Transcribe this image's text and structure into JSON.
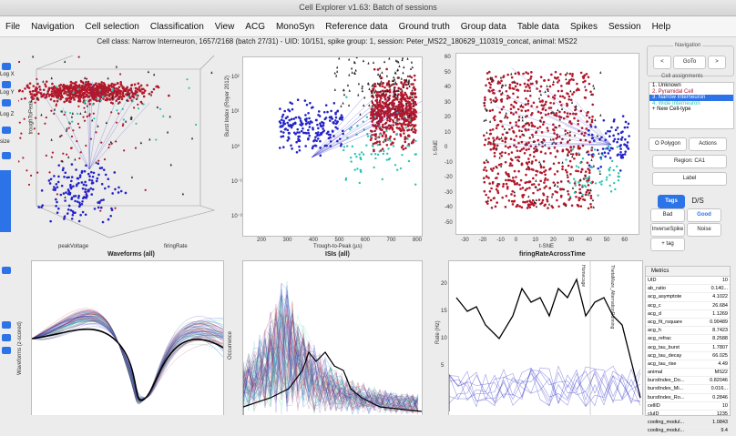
{
  "window": {
    "title": "Cell Explorer v1.63: Batch of sessions"
  },
  "menu": [
    "File",
    "Navigation",
    "Cell selection",
    "Classification",
    "View",
    "ACG",
    "MonoSyn",
    "Reference data",
    "Ground truth",
    "Group data",
    "Table data",
    "Spikes",
    "Session",
    "Help"
  ],
  "info_line": "Cell class: Narrow Interneuron, 1657/2168 (batch 27/31) - UID: 10/151, spike group: 1, session: Peter_MS22_180629_110319_concat, animal: MS22",
  "left_labels": [
    "Log X",
    "Log Y",
    "Log Z",
    "size"
  ],
  "plots": {
    "p1": {
      "xlabel": "peakVoltage",
      "ylabel": "troughToPeak",
      "zlabel": "firingRate",
      "title": "Waveforms (all)",
      "ticks": [
        "0.7",
        "0.6",
        "0.5",
        "0.4",
        "0.3",
        "0.2",
        "0.1",
        "10³",
        "10²",
        "10⁰",
        "10¹"
      ]
    },
    "p2": {
      "xlabel": "Trough-to-Peak (µs)",
      "ylabel": "Burst Index (Royer 2012)",
      "title": "ISIs (all)",
      "xticks": [
        "200",
        "300",
        "400",
        "500",
        "600",
        "700",
        "800"
      ],
      "yticks": [
        "10²",
        "10¹",
        "10⁰",
        "10⁻¹",
        "10⁻²"
      ]
    },
    "p3": {
      "xlabel": "t-SNE",
      "ylabel": "t-SNE",
      "title": "firingRateAcrossTime",
      "xticks": [
        "-30",
        "-20",
        "-10",
        "0",
        "10",
        "20",
        "30",
        "40",
        "50",
        "60"
      ],
      "yticks": [
        "60",
        "50",
        "40",
        "30",
        "20",
        "10",
        "0",
        "-10",
        "-20",
        "-30",
        "-40",
        "-50"
      ]
    },
    "p4": {
      "ylabel": "Waveforms (z-scored)"
    },
    "p5": {
      "ylabel": "Occurrence"
    },
    "p6": {
      "ylabel": "Rate (Hz)",
      "yticks": [
        "20",
        "15",
        "10",
        "5"
      ],
      "annotations": [
        "Homecage",
        "ThetaMaze_AlternationRunning"
      ]
    }
  },
  "right": {
    "navigation": {
      "caption": "Navigation",
      "prev": "<",
      "goto": "GoTo",
      "next": ">"
    },
    "cell_assignments": {
      "caption": "Cell assignments",
      "items": [
        "1. Unknown",
        "2. Pyramidal Cell",
        "3. Narrow Interneuron",
        "4. Wide Interneuron",
        "+  New Cell-type"
      ]
    },
    "polygon": "O Polygon",
    "actions": "Actions",
    "region": "Region: CA1",
    "label": "Label",
    "tags": "Tags",
    "ds": "D/S",
    "tag_buttons": [
      "Bad",
      "Good",
      "InverseSpike",
      "Noise",
      "+ tag"
    ],
    "metrics_header": "Metrics",
    "metrics": [
      [
        "UID",
        "10"
      ],
      [
        "ab_ratio",
        "0.140..."
      ],
      [
        "acg_asymptote",
        "4.1022"
      ],
      [
        "acg_c",
        "26.684"
      ],
      [
        "acg_d",
        "1.1269"
      ],
      [
        "acg_fit_rsquare",
        "0.99489"
      ],
      [
        "acg_h",
        "8.7423"
      ],
      [
        "acg_refrac",
        "8.2588"
      ],
      [
        "acg_tau_burst",
        "1.7807"
      ],
      [
        "acg_tau_decay",
        "66.025"
      ],
      [
        "acg_tau_rise",
        "4.49"
      ],
      [
        "animal",
        "MS22"
      ],
      [
        "burstIndex_Do...",
        "0.82046"
      ],
      [
        "burstIndex_Mi...",
        "0.016..."
      ],
      [
        "burstIndex_Ro...",
        "0.2846"
      ],
      [
        "cellID",
        "10"
      ],
      [
        "cluID",
        "1235"
      ],
      [
        "cooling_modul...",
        "1.0843"
      ],
      [
        "cooling_modul...",
        "9.4"
      ]
    ]
  },
  "colors": {
    "pyramidal": "#b2182b",
    "narrow": "#2323c8",
    "wide": "#2cc3b0",
    "accent": "#2c73e8"
  }
}
